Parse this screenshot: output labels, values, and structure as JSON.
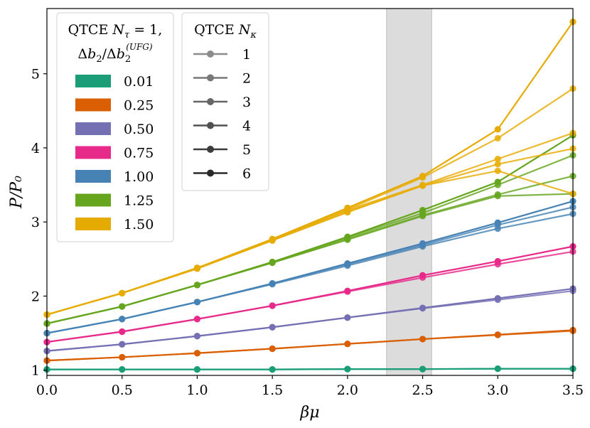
{
  "chart_data": {
    "type": "line",
    "xlabel": "βμ",
    "ylabel": "P/P₀",
    "xlim": [
      0.0,
      3.5
    ],
    "ylim": [
      0.93,
      5.88
    ],
    "xticks": [
      0.0,
      0.5,
      1.0,
      1.5,
      2.0,
      2.5,
      3.0,
      3.5
    ],
    "xtick_labels": [
      "0.0",
      "0.5",
      "1.0",
      "1.5",
      "2.0",
      "2.5",
      "3.0",
      "3.5"
    ],
    "yticks": [
      1,
      2,
      3,
      4,
      5
    ],
    "ytick_labels": [
      "1",
      "2",
      "3",
      "4",
      "5"
    ],
    "x": [
      0.0,
      0.5,
      1.0,
      1.5,
      2.0,
      2.5,
      3.0,
      3.5
    ],
    "shaded_region": {
      "x_from": 2.26,
      "x_to": 2.56,
      "color": "#dcdcdc"
    },
    "legend_color": {
      "title_line1": "QTCE N",
      "title_line1_sub": "τ",
      "title_line1_rest": " = 1,",
      "title_line2": "Δb",
      "title_line2_sub1": "2",
      "title_line2_mid": "/Δb",
      "title_line2_sub2": "2",
      "title_line2_sup": "(UFG)",
      "placement": "top-left"
    },
    "legend_order": {
      "title": "QTCE N",
      "title_sub": "κ",
      "entries": [
        {
          "label": "1",
          "shade": "#8c8c8c"
        },
        {
          "label": "2",
          "shade": "#787878"
        },
        {
          "label": "3",
          "shade": "#666666"
        },
        {
          "label": "4",
          "shade": "#505050"
        },
        {
          "label": "5",
          "shade": "#3c3c3c"
        },
        {
          "label": "6",
          "shade": "#2a2a2a"
        }
      ],
      "placement": "top-left"
    },
    "series": [
      {
        "name": "0.01",
        "color": "#1b9e77",
        "branches": [
          {
            "order": 1,
            "values": [
              1.01,
              1.01,
              1.01,
              1.01,
              1.015,
              1.015,
              1.02,
              1.02
            ]
          },
          {
            "order": 2,
            "values": [
              1.01,
              1.01,
              1.01,
              1.01,
              1.015,
              1.015,
              1.02,
              1.02
            ]
          }
        ]
      },
      {
        "name": "0.25",
        "color": "#d95f02",
        "branches": [
          {
            "order": 1,
            "values": [
              1.13,
              1.175,
              1.23,
              1.29,
              1.355,
              1.42,
              1.48,
              1.54
            ]
          },
          {
            "order": 2,
            "values": [
              1.13,
              1.175,
              1.23,
              1.29,
              1.355,
              1.42,
              1.475,
              1.53
            ]
          }
        ]
      },
      {
        "name": "0.50",
        "color": "#7570b3",
        "branches": [
          {
            "order": 1,
            "values": [
              1.26,
              1.35,
              1.46,
              1.58,
              1.71,
              1.84,
              1.97,
              2.1
            ]
          },
          {
            "order": 2,
            "values": [
              1.26,
              1.35,
              1.46,
              1.58,
              1.71,
              1.835,
              1.95,
              2.07
            ]
          }
        ]
      },
      {
        "name": "0.75",
        "color": "#e7298a",
        "branches": [
          {
            "order": 1,
            "values": [
              1.38,
              1.52,
              1.69,
              1.87,
              2.07,
              2.28,
              2.47,
              2.67
            ]
          },
          {
            "order": 2,
            "values": [
              1.38,
              1.52,
              1.69,
              1.87,
              2.06,
              2.25,
              2.43,
              2.6
            ]
          }
        ]
      },
      {
        "name": "1.00",
        "color": "#4682b4",
        "branches": [
          {
            "order": 1,
            "values": [
              1.5,
              1.69,
              1.92,
              2.17,
              2.44,
              2.71,
              2.99,
              3.28
            ]
          },
          {
            "order": 2,
            "values": [
              1.5,
              1.69,
              1.92,
              2.17,
              2.43,
              2.69,
              2.96,
              3.2
            ]
          },
          {
            "order": 3,
            "values": [
              1.5,
              1.69,
              1.92,
              2.16,
              2.41,
              2.67,
              2.91,
              3.11
            ]
          }
        ]
      },
      {
        "name": "1.25",
        "color": "#66a61e",
        "branches": [
          {
            "order": 1,
            "values": [
              1.63,
              1.86,
              2.15,
              2.46,
              2.8,
              3.16,
              3.54,
              4.17
            ]
          },
          {
            "order": 2,
            "values": [
              1.63,
              1.86,
              2.15,
              2.46,
              2.79,
              3.12,
              3.5,
              3.9
            ]
          },
          {
            "order": 3,
            "values": [
              1.63,
              1.86,
              2.15,
              2.45,
              2.77,
              3.09,
              3.37,
              3.62
            ]
          },
          {
            "order": 4,
            "values": [
              1.63,
              1.86,
              2.15,
              2.45,
              2.76,
              3.08,
              3.35,
              3.38
            ]
          }
        ]
      },
      {
        "name": "1.50",
        "color": "#e6ab02",
        "branches": [
          {
            "order": 1,
            "values": [
              1.75,
              2.04,
              2.38,
              2.77,
              3.19,
              3.62,
              4.25,
              5.7
            ]
          },
          {
            "order": 2,
            "values": [
              1.75,
              2.04,
              2.38,
              2.76,
              3.17,
              3.6,
              4.13,
              4.8
            ]
          },
          {
            "order": 3,
            "values": [
              1.75,
              2.04,
              2.38,
              2.76,
              3.16,
              3.5,
              3.85,
              4.2
            ]
          },
          {
            "order": 4,
            "values": [
              1.75,
              2.04,
              2.37,
              2.75,
              3.14,
              3.49,
              3.78,
              3.99
            ]
          },
          {
            "order": 5,
            "values": [
              1.75,
              2.04,
              2.37,
              2.75,
              3.13,
              3.49,
              3.69,
              3.38
            ]
          }
        ]
      }
    ]
  }
}
